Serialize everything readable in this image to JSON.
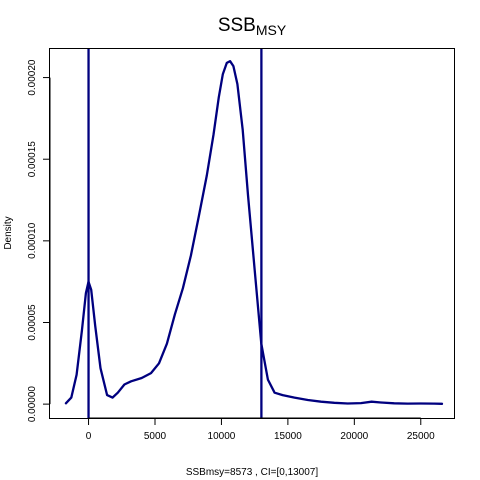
{
  "chart_data": {
    "type": "line",
    "title": {
      "main": "SSB",
      "subscript": "MSY"
    },
    "xlabel": "SSBmsy=8573 , CI=[0,13007]",
    "ylabel": "Density",
    "xlim": [
      -2900,
      27500
    ],
    "ylim": [
      -8.5e-06,
      0.0002175
    ],
    "x_ticks": [
      0,
      5000,
      10000,
      15000,
      20000,
      25000
    ],
    "x_tick_labels": [
      "0",
      "5000",
      "10000",
      "15000",
      "20000",
      "25000"
    ],
    "y_ticks": [
      0,
      5e-05,
      0.0001,
      0.00015,
      0.0002
    ],
    "y_tick_labels": [
      "0.00000",
      "0.00005",
      "0.00010",
      "0.00015",
      "0.00020"
    ],
    "grid": false,
    "line_color": "#00007f",
    "vlines": [
      0,
      13007
    ],
    "series": [
      {
        "x": [
          -1700,
          -1300,
          -900,
          -500,
          -200,
          0,
          200,
          500,
          900,
          1400,
          1800,
          2200,
          2700,
          3200,
          4000,
          4700,
          5300,
          5900,
          6500,
          7100,
          7700,
          8300,
          8900,
          9400,
          9800,
          10100,
          10400,
          10650,
          10900,
          11200,
          11600,
          12000,
          12500,
          13000,
          13500,
          14000,
          14600,
          15500,
          16500,
          17500,
          18500,
          19500,
          20500,
          21300,
          22000,
          23000,
          24000,
          25000,
          26000,
          26600
        ],
        "y": [
          5e-07,
          4e-06,
          1.8e-05,
          4.5e-05,
          6.8e-05,
          7.5e-05,
          7e-05,
          4.8e-05,
          2.2e-05,
          5.5e-06,
          4e-06,
          7e-06,
          1.2e-05,
          1.4e-05,
          1.6e-05,
          1.9e-05,
          2.5e-05,
          3.7e-05,
          5.5e-05,
          7.1e-05,
          9.1e-05,
          0.000115,
          0.00014,
          0.000165,
          0.000188,
          0.000202,
          0.000209,
          0.00021,
          0.000207,
          0.000196,
          0.000168,
          0.000128,
          8.2e-05,
          3.7e-05,
          1.5e-05,
          7e-06,
          5.5e-06,
          4e-06,
          2.5e-06,
          1.5e-06,
          8e-07,
          4e-07,
          6e-07,
          1.5e-06,
          1e-06,
          5e-07,
          3e-07,
          4e-07,
          3e-07,
          2e-07
        ]
      }
    ]
  }
}
